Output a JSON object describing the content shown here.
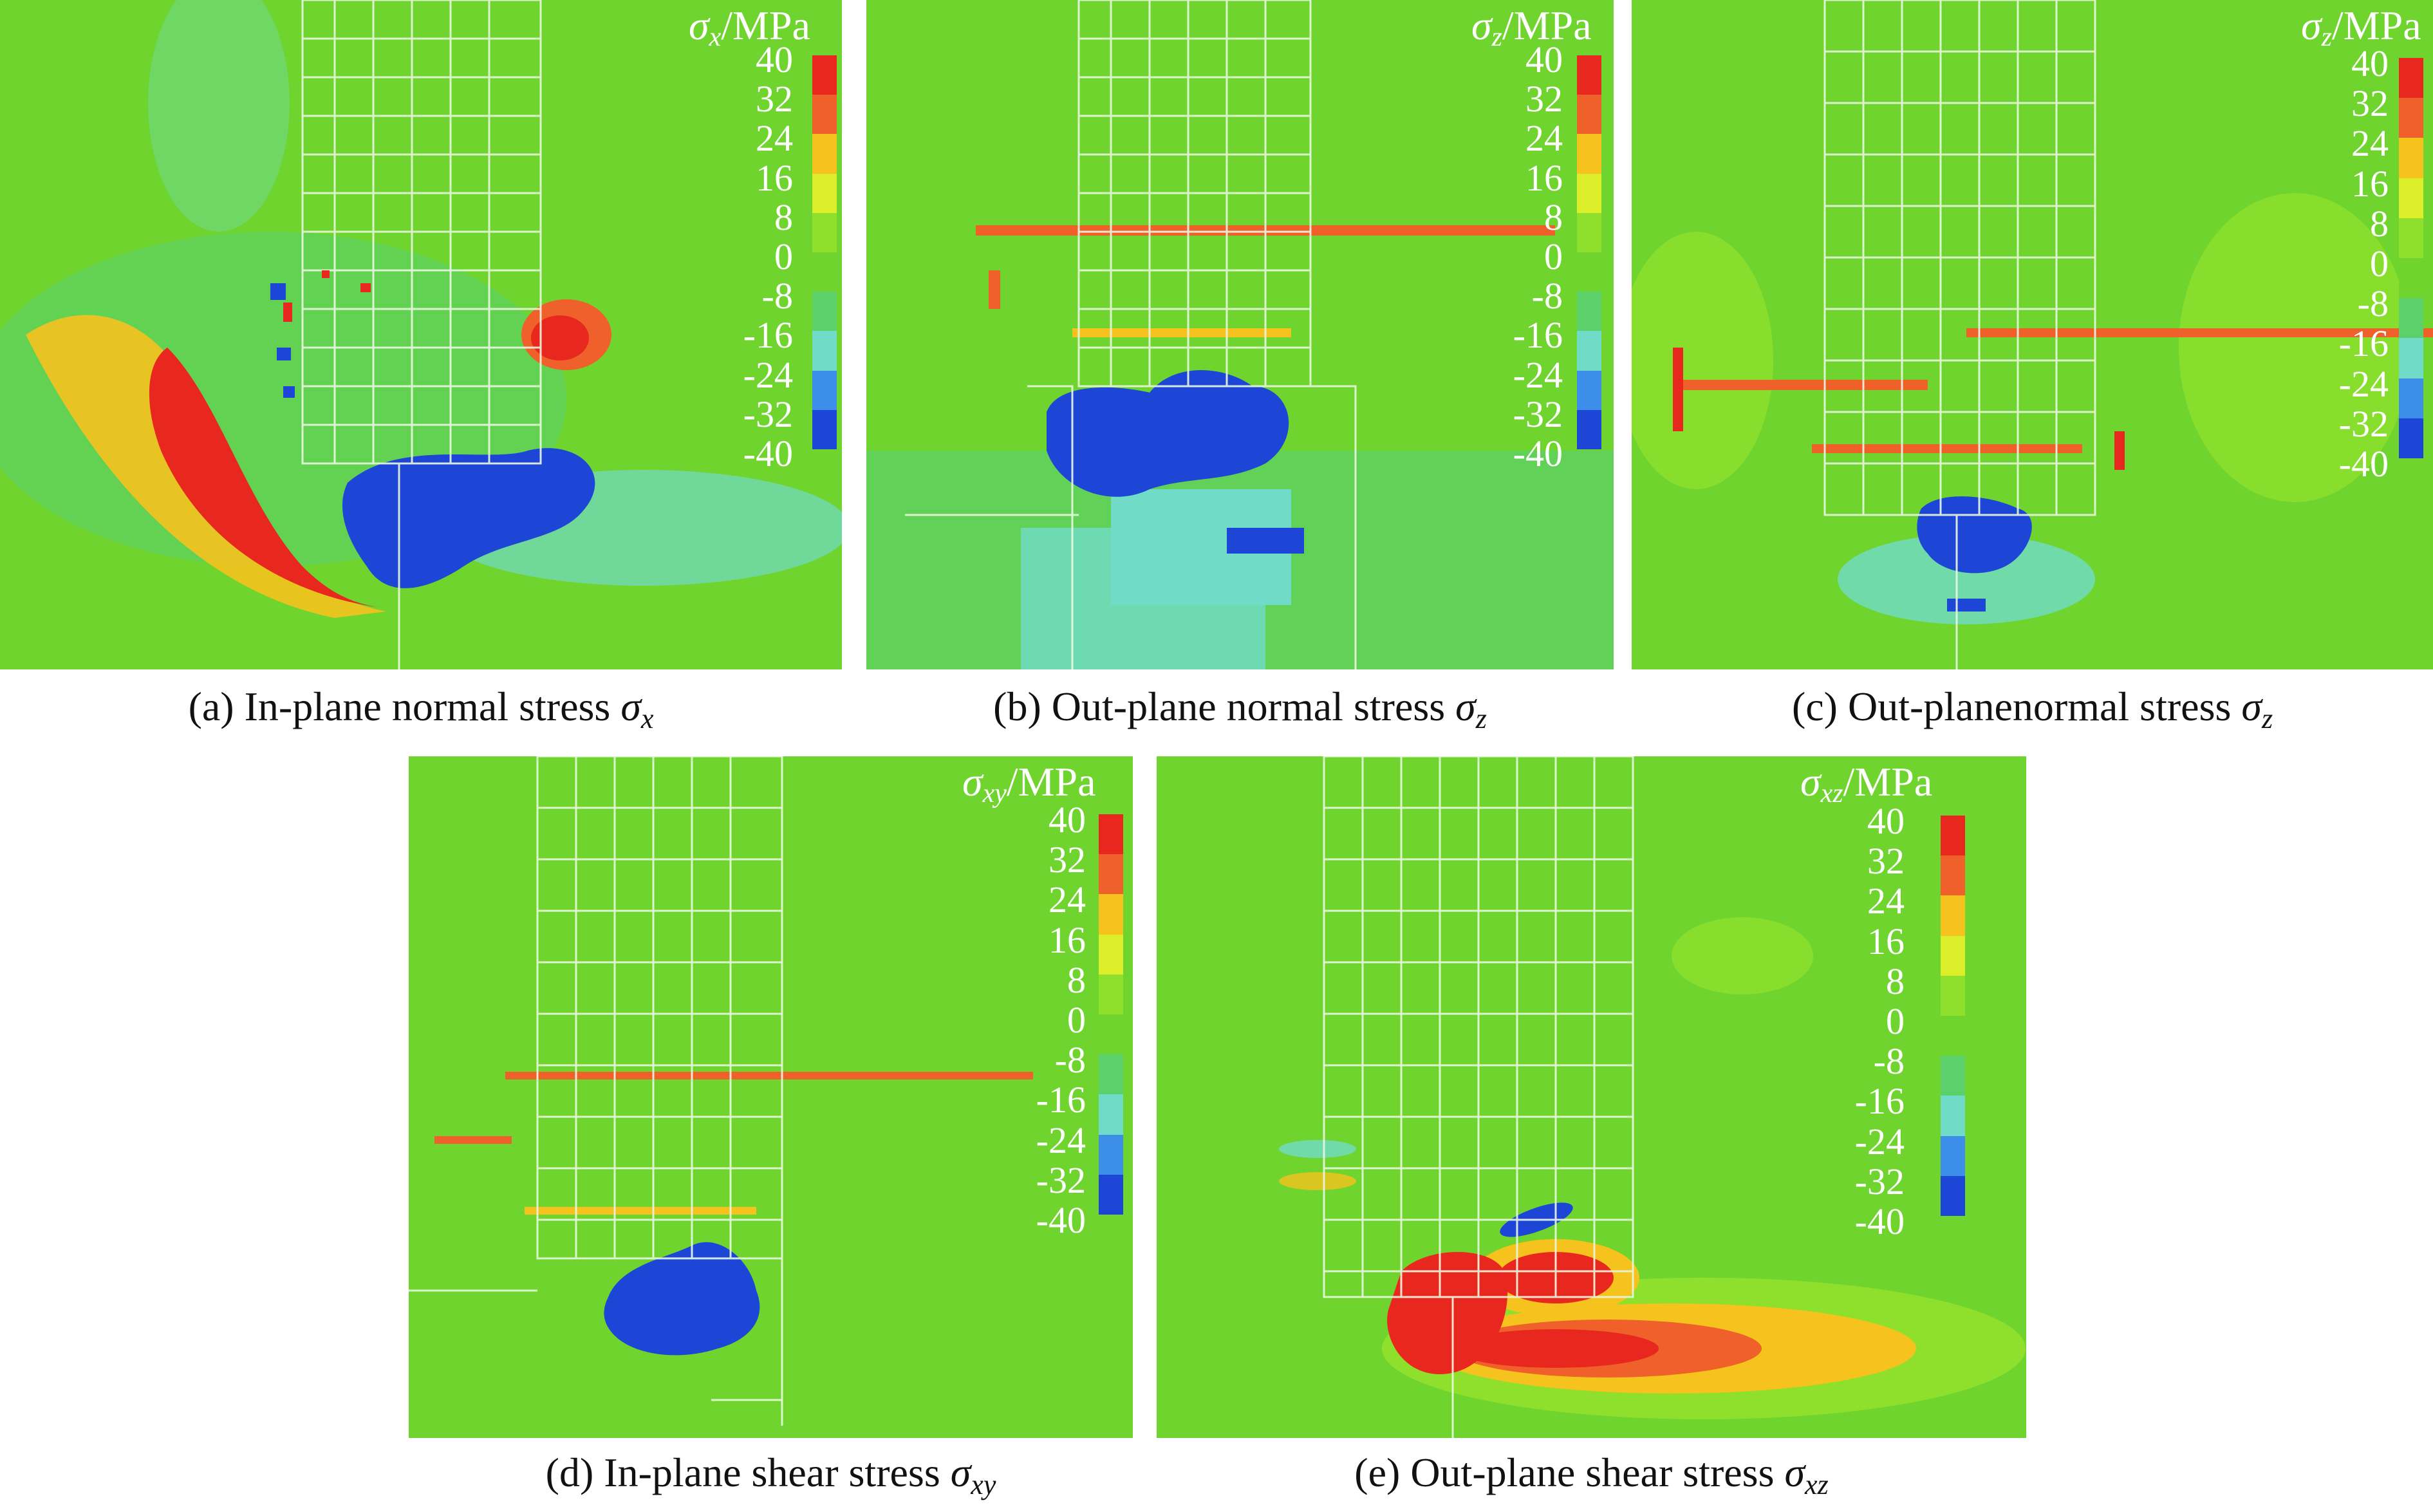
{
  "colorbar": {
    "ticks": [
      "40",
      "32",
      "24",
      "16",
      "8",
      "0",
      "-8",
      "-16",
      "-24",
      "-32",
      "-40"
    ],
    "colors": [
      "#e8281e",
      "#f0602a",
      "#f5c21e",
      "#dcee2a",
      "#8ee02c",
      "#6fd42e",
      "#5cd06a",
      "#70dcc8",
      "#3c8ee8",
      "#1e46d6"
    ]
  },
  "colors": {
    "background": "#6fd42e",
    "crack_lines": "#e8f8e0",
    "compression": "#1e46d6",
    "tension": "#e8281e"
  },
  "panels": [
    {
      "id": "a",
      "cb_symbol": "σ",
      "cb_sub": "x",
      "cb_unit": "/MPa",
      "caption_text": "(a) In-plane normal stress ",
      "caption_symbol": "σ",
      "caption_sub": "x"
    },
    {
      "id": "b",
      "cb_symbol": "σ",
      "cb_sub": "z",
      "cb_unit": "/MPa",
      "caption_text": "(b) Out-plane normal stress ",
      "caption_symbol": "σ",
      "caption_sub": "z"
    },
    {
      "id": "c",
      "cb_symbol": "σ",
      "cb_sub": "z",
      "cb_unit": "/MPa",
      "caption_text": "(c) Out-planenormal stress ",
      "caption_symbol": "σ",
      "caption_sub": "z"
    },
    {
      "id": "d",
      "cb_symbol": "σ",
      "cb_sub": "xy",
      "cb_unit": "/MPa",
      "caption_text": "(d) In-plane shear stress ",
      "caption_symbol": "σ",
      "caption_sub": "xy"
    },
    {
      "id": "e",
      "cb_symbol": "σ",
      "cb_sub": "xz",
      "cb_unit": "/MPa",
      "caption_text": "(e) Out-plane shear stress ",
      "caption_symbol": "σ",
      "caption_sub": "xz"
    }
  ]
}
